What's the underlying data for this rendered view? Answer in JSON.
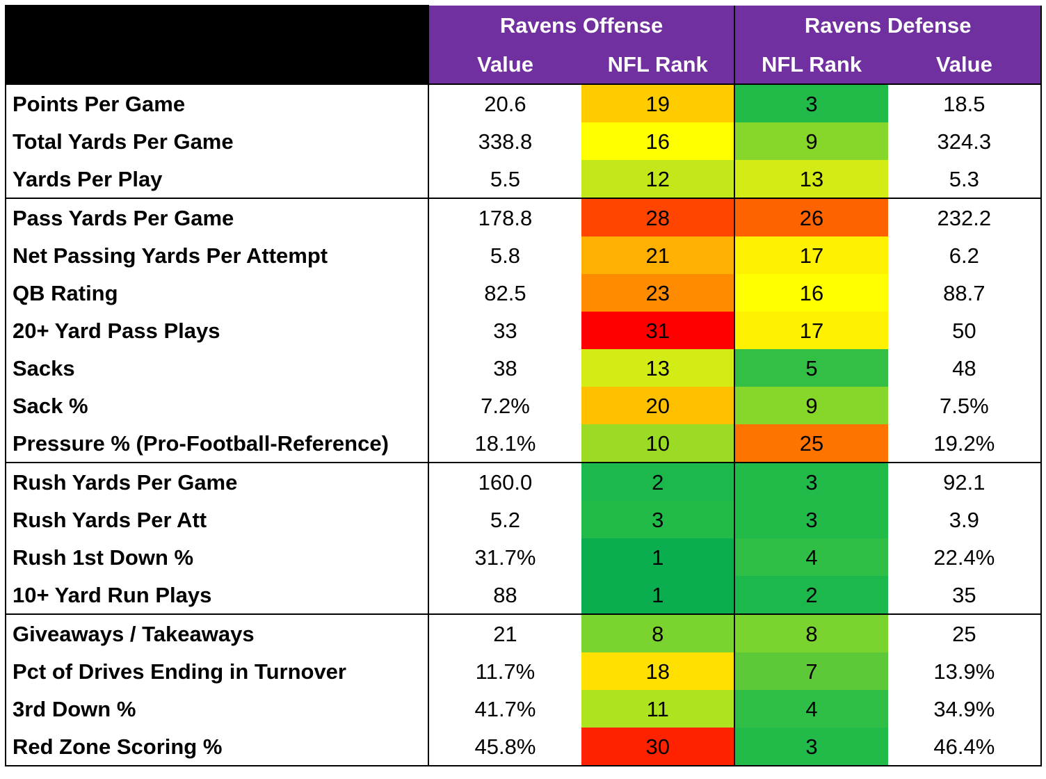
{
  "header": {
    "offense_title": "Ravens Offense",
    "defense_title": "Ravens Defense",
    "offense_cols": [
      "Value",
      "NFL Rank"
    ],
    "defense_cols": [
      "NFL Rank",
      "Value"
    ]
  },
  "rank_colors": {
    "1": "#0aae4e",
    "2": "#1cb84c",
    "3": "#22bb4a",
    "4": "#2fbe46",
    "5": "#33bf45",
    "7": "#5dc938",
    "8": "#7ad32e",
    "9": "#87d72a",
    "10": "#9bdb25",
    "11": "#aee31f",
    "12": "#c2e81a",
    "13": "#d4ec16",
    "16": "#ffff00",
    "17": "#fff200",
    "18": "#ffe000",
    "19": "#ffcc00",
    "20": "#ffc000",
    "21": "#ffb000",
    "23": "#ff8c00",
    "25": "#ff7400",
    "26": "#ff6300",
    "28": "#ff4500",
    "30": "#ff2200",
    "31": "#ff0000"
  },
  "rows": [
    {
      "label": "Points Per Game",
      "off_value": "20.6",
      "off_rank": "19",
      "def_rank": "3",
      "def_value": "18.5"
    },
    {
      "label": "Total Yards Per Game",
      "off_value": "338.8",
      "off_rank": "16",
      "def_rank": "9",
      "def_value": "324.3"
    },
    {
      "label": "Yards Per Play",
      "off_value": "5.5",
      "off_rank": "12",
      "def_rank": "13",
      "def_value": "5.3"
    },
    {
      "label": "Pass Yards Per Game",
      "off_value": "178.8",
      "off_rank": "28",
      "def_rank": "26",
      "def_value": "232.2"
    },
    {
      "label": "Net Passing Yards Per Attempt",
      "off_value": "5.8",
      "off_rank": "21",
      "def_rank": "17",
      "def_value": "6.2"
    },
    {
      "label": "QB Rating",
      "off_value": "82.5",
      "off_rank": "23",
      "def_rank": "16",
      "def_value": "88.7"
    },
    {
      "label": "20+ Yard Pass Plays",
      "off_value": "33",
      "off_rank": "31",
      "def_rank": "17",
      "def_value": "50"
    },
    {
      "label": "Sacks",
      "off_value": "38",
      "off_rank": "13",
      "def_rank": "5",
      "def_value": "48"
    },
    {
      "label": "Sack %",
      "off_value": "7.2%",
      "off_rank": "20",
      "def_rank": "9",
      "def_value": "7.5%"
    },
    {
      "label": "Pressure % (Pro-Football-Reference)",
      "off_value": "18.1%",
      "off_rank": "10",
      "def_rank": "25",
      "def_value": "19.2%"
    },
    {
      "label": "Rush Yards Per Game",
      "off_value": "160.0",
      "off_rank": "2",
      "def_rank": "3",
      "def_value": "92.1"
    },
    {
      "label": "Rush Yards Per Att",
      "off_value": "5.2",
      "off_rank": "3",
      "def_rank": "3",
      "def_value": "3.9"
    },
    {
      "label": "Rush 1st Down %",
      "off_value": "31.7%",
      "off_rank": "1",
      "def_rank": "4",
      "def_value": "22.4%"
    },
    {
      "label": "10+ Yard Run Plays",
      "off_value": "88",
      "off_rank": "1",
      "def_rank": "2",
      "def_value": "35"
    },
    {
      "label": "Giveaways / Takeaways",
      "off_value": "21",
      "off_rank": "8",
      "def_rank": "8",
      "def_value": "25"
    },
    {
      "label": "Pct of Drives Ending in Turnover",
      "off_value": "11.7%",
      "off_rank": "18",
      "def_rank": "7",
      "def_value": "13.9%"
    },
    {
      "label": "3rd Down %",
      "off_value": "41.7%",
      "off_rank": "11",
      "def_rank": "4",
      "def_value": "34.9%"
    },
    {
      "label": "Red Zone Scoring %",
      "off_value": "45.8%",
      "off_rank": "30",
      "def_rank": "3",
      "def_value": "46.4%"
    }
  ],
  "group_starts": [
    0,
    3,
    10,
    14
  ]
}
